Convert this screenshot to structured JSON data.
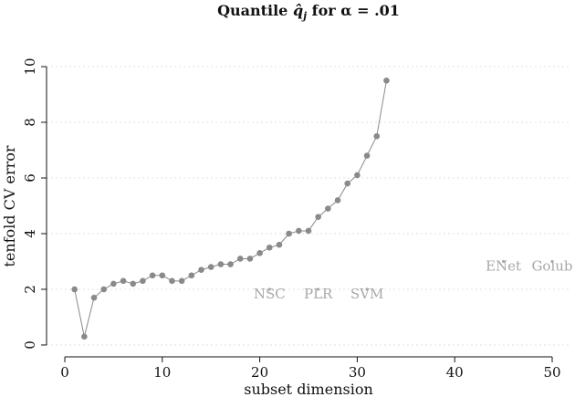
{
  "chart_data": {
    "type": "scatter",
    "title_prefix": "Quantile ",
    "title_symbol": "q̂",
    "title_subscript": "j",
    "title_suffix": " for α = .01",
    "xlabel": "subset dimension",
    "ylabel": "tenfold CV error",
    "xlim": [
      0,
      50
    ],
    "ylim": [
      0,
      10
    ],
    "xticks": [
      0,
      10,
      20,
      30,
      40,
      50
    ],
    "yticks": [
      0,
      2,
      4,
      6,
      8,
      10
    ],
    "grid": "horizontal dotted",
    "series": [
      {
        "x": [
          1,
          2,
          3,
          4,
          5,
          6,
          7,
          8,
          9,
          10,
          11,
          12,
          13,
          14,
          15,
          16,
          17,
          18,
          19,
          20,
          21,
          22,
          23,
          24,
          25,
          26,
          27,
          28,
          29,
          30,
          31,
          32,
          33
        ],
        "y": [
          2.0,
          0.3,
          1.7,
          2.0,
          2.2,
          2.3,
          2.2,
          2.3,
          2.5,
          2.5,
          2.3,
          2.3,
          2.5,
          2.7,
          2.8,
          2.9,
          2.9,
          3.1,
          3.1,
          3.3,
          3.5,
          3.6,
          4.0,
          4.1,
          4.1,
          4.6,
          4.9,
          5.2,
          5.8,
          6.1,
          6.8,
          7.5,
          9.5
        ]
      }
    ],
    "reference_points": [
      {
        "label": "NSC",
        "x": 21,
        "y": 2.0
      },
      {
        "label": "PLR",
        "x": 26,
        "y": 2.0
      },
      {
        "label": "SVM",
        "x": 31,
        "y": 2.0
      },
      {
        "label": "ENet",
        "x": 45,
        "y": 3.0
      },
      {
        "label": "Golub",
        "x": 50,
        "y": 3.0
      }
    ]
  }
}
